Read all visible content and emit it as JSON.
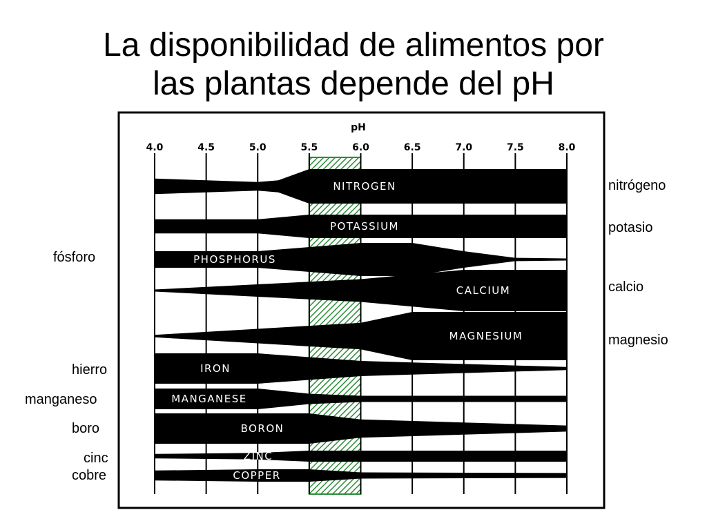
{
  "title": {
    "line1": "La disponibilidad de alimentos por",
    "line2": "las plantas depende del pH"
  },
  "labels_es": {
    "nitrogeno": "nitrógeno",
    "potasio": "potasio",
    "fosforo": "fósforo",
    "calcio": "calcio",
    "magnesio": "magnesio",
    "hierro": "hierro",
    "manganeso": "manganeso",
    "boro": "boro",
    "cinc": "cinc",
    "cobre": "cobre"
  },
  "colors": {
    "band": "#000000",
    "optimal_zone": "#2e8b3a"
  },
  "chart_data": {
    "type": "band",
    "xlabel": "pH",
    "x_ticks": [
      "4.0",
      "4.5",
      "5.0",
      "5.5",
      "6.0",
      "6.5",
      "7.0",
      "7.5",
      "8.0"
    ],
    "xlim": [
      4.0,
      8.0
    ],
    "optimal_range": [
      5.5,
      6.0
    ],
    "nutrients": [
      {
        "name": "NITROGEN",
        "relative_availability": {
          "x": [
            4.0,
            5.0,
            5.2,
            5.5,
            6.0,
            7.0,
            8.0
          ],
          "y": [
            0.45,
            0.25,
            0.35,
            1.0,
            1.0,
            1.0,
            1.0
          ]
        }
      },
      {
        "name": "POTASSIUM",
        "relative_availability": {
          "x": [
            4.0,
            5.0,
            5.5,
            6.0,
            8.0
          ],
          "y": [
            0.6,
            0.6,
            1.0,
            1.0,
            1.0
          ]
        }
      },
      {
        "name": "PHOSPHORUS",
        "relative_availability": {
          "x": [
            4.0,
            5.0,
            6.0,
            6.5,
            7.0,
            7.5,
            8.0
          ],
          "y": [
            0.5,
            0.5,
            1.0,
            1.0,
            0.5,
            0.1,
            0.05
          ]
        }
      },
      {
        "name": "CALCIUM",
        "relative_availability": {
          "x": [
            4.0,
            5.0,
            6.0,
            7.0,
            8.0
          ],
          "y": [
            0.05,
            0.3,
            0.55,
            1.0,
            1.0
          ]
        }
      },
      {
        "name": "MAGNESIUM",
        "relative_availability": {
          "x": [
            4.0,
            5.0,
            6.0,
            6.5,
            8.0
          ],
          "y": [
            0.05,
            0.3,
            0.55,
            1.0,
            1.0
          ]
        }
      },
      {
        "name": "IRON",
        "relative_availability": {
          "x": [
            4.0,
            5.0,
            6.0,
            7.0,
            8.0
          ],
          "y": [
            1.0,
            1.0,
            0.5,
            0.3,
            0.1
          ]
        }
      },
      {
        "name": "MANGANESE",
        "relative_availability": {
          "x": [
            4.0,
            5.0,
            5.5,
            6.0,
            8.0
          ],
          "y": [
            1.0,
            1.0,
            0.5,
            0.3,
            0.3
          ]
        }
      },
      {
        "name": "BORON",
        "relative_availability": {
          "x": [
            4.0,
            5.0,
            5.5,
            6.0,
            7.0,
            8.0
          ],
          "y": [
            1.0,
            1.0,
            1.0,
            0.6,
            0.4,
            0.2
          ]
        }
      },
      {
        "name": "ZINC",
        "relative_availability": {
          "x": [
            4.0,
            5.0,
            5.5,
            6.0,
            7.0,
            8.0
          ],
          "y": [
            0.4,
            0.6,
            1.0,
            1.0,
            1.0,
            1.0
          ]
        }
      },
      {
        "name": "COPPER",
        "relative_availability": {
          "x": [
            4.0,
            5.0,
            5.5,
            6.0,
            8.0
          ],
          "y": [
            0.8,
            1.0,
            1.0,
            0.5,
            0.4
          ]
        }
      }
    ]
  }
}
